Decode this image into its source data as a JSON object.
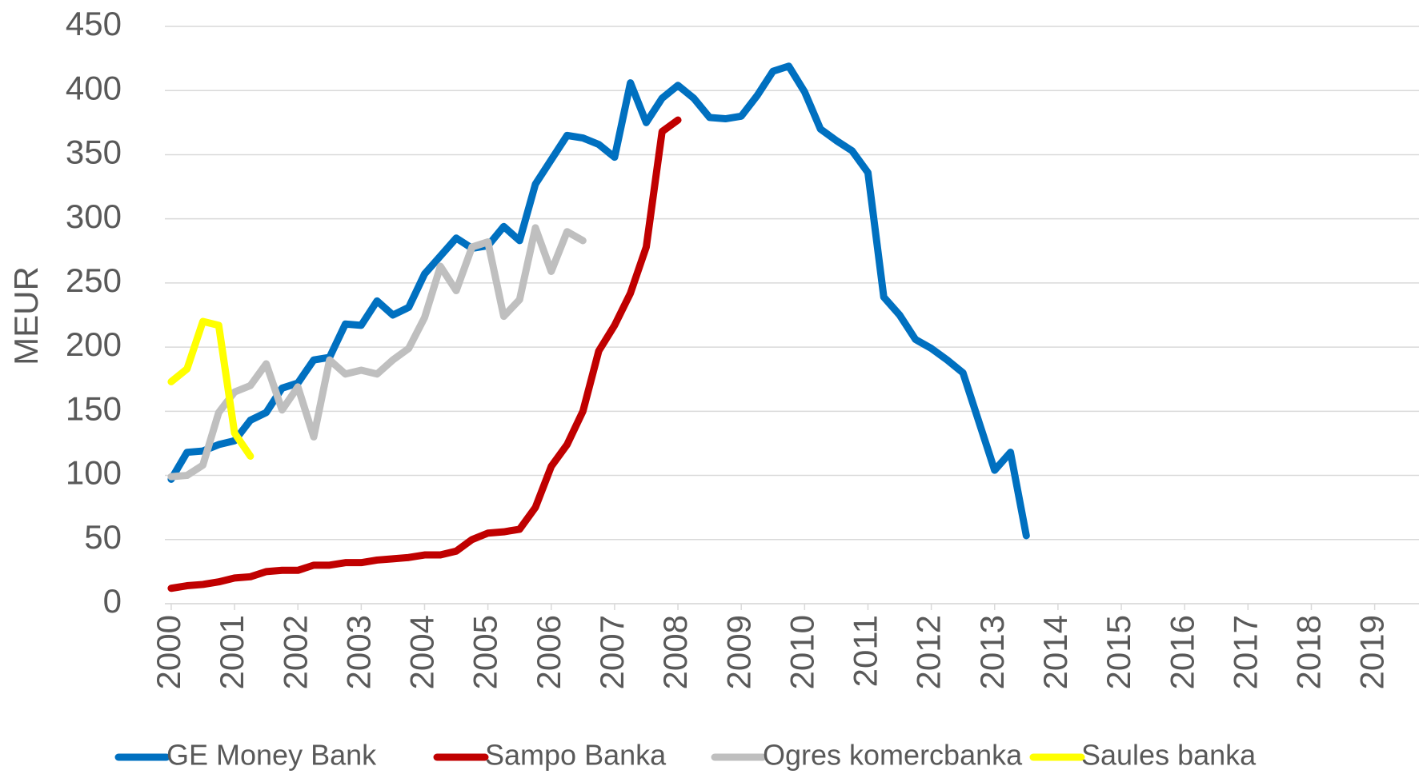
{
  "chart_data": {
    "type": "line",
    "y_label": "MEUR",
    "xlim": [
      1999.9,
      2019.7
    ],
    "xticks": [
      2000,
      2001,
      2002,
      2003,
      2004,
      2005,
      2006,
      2007,
      2008,
      2009,
      2010,
      2011,
      2012,
      2013,
      2014,
      2015,
      2016,
      2017,
      2018,
      2019
    ],
    "ylim": [
      0,
      450
    ],
    "yticks": [
      0,
      50,
      100,
      150,
      200,
      250,
      300,
      350,
      400,
      450
    ],
    "grid": true,
    "legend": "bottom",
    "series": [
      {
        "name": "GE Money Bank",
        "color": "#0070c0",
        "x": [
          2000,
          2000.25,
          2000.5,
          2000.75,
          2001,
          2001.25,
          2001.5,
          2001.75,
          2002,
          2002.25,
          2002.5,
          2002.75,
          2003,
          2003.25,
          2003.5,
          2003.75,
          2004,
          2004.25,
          2004.5,
          2004.75,
          2005,
          2005.25,
          2005.5,
          2005.75,
          2006,
          2006.25,
          2006.5,
          2006.75,
          2007,
          2007.25,
          2007.5,
          2007.75,
          2008,
          2008.25,
          2008.5,
          2008.75,
          2009,
          2009.25,
          2009.5,
          2009.75,
          2010,
          2010.25,
          2010.5,
          2010.75,
          2011,
          2011.25,
          2011.5,
          2011.75,
          2012,
          2012.25,
          2012.5,
          2012.75,
          2013,
          2013.25,
          2013.5
        ],
        "values": [
          97,
          118,
          119,
          124,
          127,
          143,
          149,
          168,
          172,
          190,
          192,
          218,
          217,
          236,
          225,
          231,
          257,
          271,
          285,
          277,
          279,
          294,
          283,
          327,
          346,
          365,
          363,
          358,
          348,
          406,
          375,
          394,
          404,
          394,
          379,
          378,
          380,
          396,
          415,
          419,
          399,
          370,
          361,
          353,
          336,
          239,
          225,
          206,
          199,
          190,
          180,
          142,
          104,
          118,
          53
        ]
      },
      {
        "name": "Sampo Banka",
        "color": "#c00000",
        "x": [
          2000,
          2000.25,
          2000.5,
          2000.75,
          2001,
          2001.25,
          2001.5,
          2001.75,
          2002,
          2002.25,
          2002.5,
          2002.75,
          2003,
          2003.25,
          2003.5,
          2003.75,
          2004,
          2004.25,
          2004.5,
          2004.75,
          2005,
          2005.25,
          2005.5,
          2005.75,
          2006,
          2006.25,
          2006.5,
          2006.75,
          2007,
          2007.25,
          2007.5,
          2007.75,
          2008
        ],
        "values": [
          12,
          14,
          15,
          17,
          20,
          21,
          25,
          26,
          26,
          30,
          30,
          32,
          32,
          34,
          35,
          36,
          38,
          38,
          41,
          50,
          55,
          56,
          58,
          75,
          107,
          124,
          150,
          197,
          217,
          242,
          278,
          368,
          377
        ]
      },
      {
        "name": "Ogres komercbanka",
        "color": "#bfbfbf",
        "x": [
          2000,
          2000.25,
          2000.5,
          2000.75,
          2001,
          2001.25,
          2001.5,
          2001.75,
          2002,
          2002.25,
          2002.5,
          2002.75,
          2003,
          2003.25,
          2003.5,
          2003.75,
          2004,
          2004.25,
          2004.5,
          2004.75,
          2005,
          2005.25,
          2005.5,
          2005.75,
          2006,
          2006.25,
          2006.5
        ],
        "values": [
          99,
          100,
          108,
          149,
          165,
          170,
          187,
          151,
          169,
          130,
          190,
          179,
          182,
          179,
          190,
          199,
          223,
          263,
          244,
          278,
          282,
          224,
          237,
          293,
          259,
          290,
          283
        ]
      },
      {
        "name": "Saules banka",
        "color": "#ffff00",
        "x": [
          2000,
          2000.25,
          2000.5,
          2000.75,
          2001,
          2001.25
        ],
        "values": [
          173,
          183,
          220,
          217,
          133,
          115
        ]
      }
    ]
  }
}
